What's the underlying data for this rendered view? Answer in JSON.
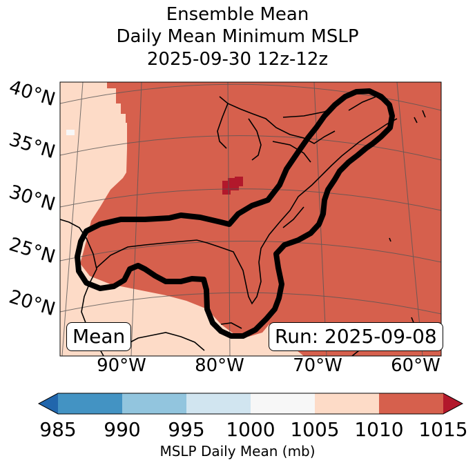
{
  "title": {
    "line1": "Ensemble Mean",
    "line2": "Daily Mean Minimum MSLP",
    "line3": "2025-09-30 12z-12z"
  },
  "map": {
    "lat_labels": [
      "40°N",
      "35°N",
      "30°N",
      "25°N",
      "20°N"
    ],
    "lon_labels": [
      "90°W",
      "80°W",
      "70°W",
      "60°W"
    ],
    "mean_box": "Mean",
    "run_box": "Run: 2025-09-08",
    "colors": {
      "ocean_low": "#d6604d",
      "land_high": "#fddbc7",
      "min_region": "#b2182b"
    }
  },
  "colorbar": {
    "label": "MSLP Daily Mean (mb)",
    "ticks": [
      "985",
      "990",
      "995",
      "1000",
      "1005",
      "1010",
      "1015"
    ],
    "colors": [
      "#2166ac",
      "#4393c3",
      "#92c5de",
      "#d1e5f0",
      "#f7f7f7",
      "#fddbc7",
      "#d6604d",
      "#b2182b"
    ]
  }
}
